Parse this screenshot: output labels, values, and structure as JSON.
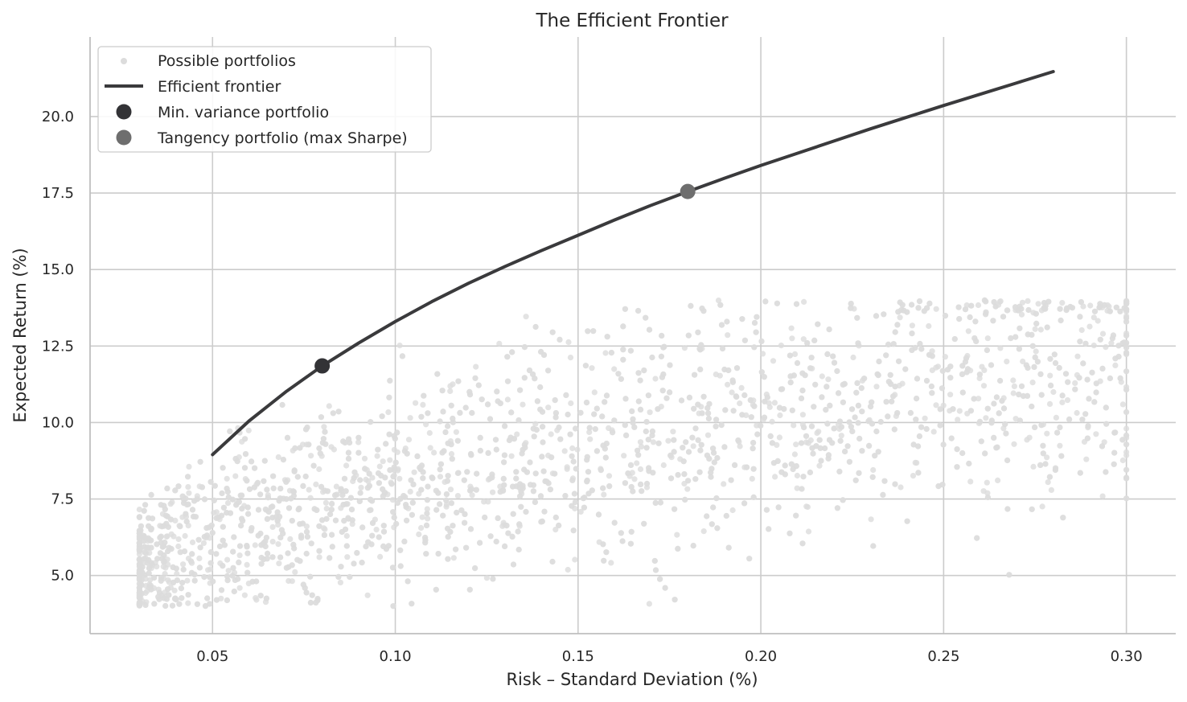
{
  "chart_data": {
    "type": "scatter",
    "title": "The Efficient Frontier",
    "xlabel": "Risk – Standard Deviation (%)",
    "ylabel": "Expected Return (%)",
    "xlim": [
      0.0165,
      0.3135
    ],
    "ylim": [
      3.1,
      22.6
    ],
    "xticks": [
      0.05,
      0.1,
      0.15,
      0.2,
      0.25,
      0.3
    ],
    "xtick_labels": [
      "0.05",
      "0.10",
      "0.15",
      "0.20",
      "0.25",
      "0.30"
    ],
    "yticks": [
      5.0,
      7.5,
      10.0,
      12.5,
      15.0,
      17.5,
      20.0
    ],
    "ytick_labels": [
      "5.0",
      "7.5",
      "10.0",
      "12.5",
      "15.0",
      "17.5",
      "20.0"
    ],
    "grid": true,
    "legend_position": "top-left",
    "colors": {
      "scatter": "#dcdcdc",
      "frontier": "#3a3a3c",
      "min_variance": "#333336",
      "tangency": "#6e6e6e",
      "grid": "#cccccc",
      "spine": "#bfbfbf"
    },
    "series": [
      {
        "name": "Possible portfolios",
        "kind": "scatter",
        "description_count": 3000,
        "x_range": [
          0.03,
          0.3
        ],
        "y_range": [
          4.0,
          14.0
        ]
      },
      {
        "name": "Efficient frontier",
        "kind": "line",
        "points": [
          [
            0.05,
            8.95
          ],
          [
            0.06,
            10.05
          ],
          [
            0.07,
            11.0
          ],
          [
            0.08,
            11.85
          ],
          [
            0.09,
            12.6
          ],
          [
            0.1,
            13.3
          ],
          [
            0.11,
            13.95
          ],
          [
            0.12,
            14.55
          ],
          [
            0.13,
            15.1
          ],
          [
            0.14,
            15.62
          ],
          [
            0.15,
            16.12
          ],
          [
            0.16,
            16.62
          ],
          [
            0.17,
            17.1
          ],
          [
            0.18,
            17.55
          ],
          [
            0.19,
            17.98
          ],
          [
            0.2,
            18.4
          ],
          [
            0.21,
            18.8
          ],
          [
            0.22,
            19.2
          ],
          [
            0.23,
            19.6
          ],
          [
            0.24,
            19.98
          ],
          [
            0.25,
            20.36
          ],
          [
            0.26,
            20.73
          ],
          [
            0.27,
            21.1
          ],
          [
            0.28,
            21.47
          ]
        ]
      },
      {
        "name": "Min. variance portfolio",
        "kind": "point",
        "x": 0.08,
        "y": 11.85
      },
      {
        "name": "Tangency portfolio (max Sharpe)",
        "kind": "point",
        "x": 0.18,
        "y": 17.55
      }
    ]
  }
}
